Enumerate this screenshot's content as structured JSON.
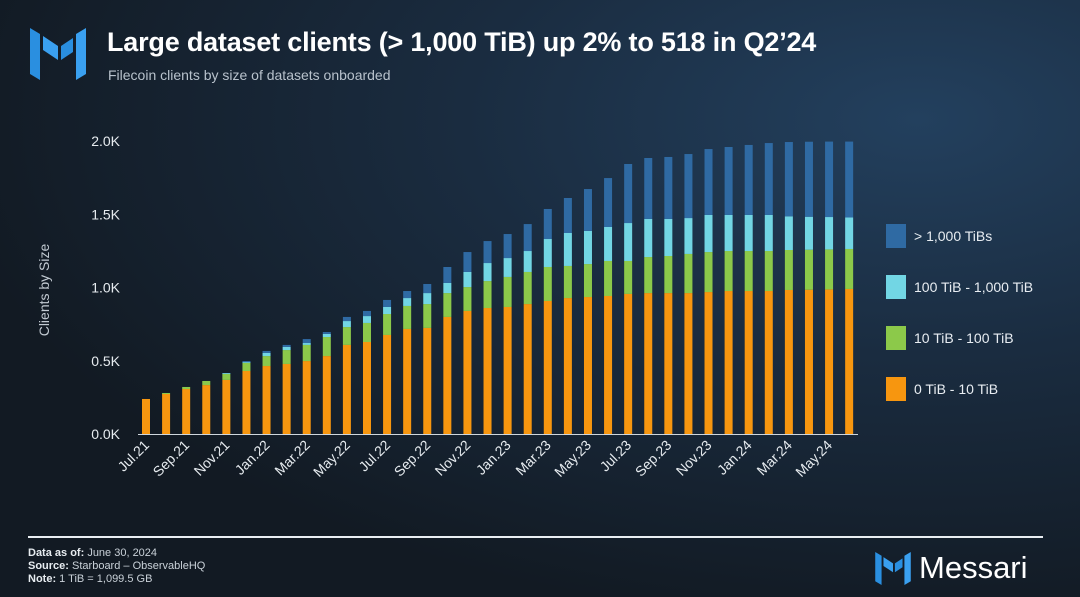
{
  "header": {
    "title": "Large dataset clients (> 1,000 TiB) up 2% to 518 in Q2’24",
    "subtitle": "Filecoin clients by size of datasets onboarded"
  },
  "footer": {
    "data_as_of_label": "Data as of:",
    "data_as_of": "June 30, 2024",
    "source_label": "Source:",
    "source": "Starboard – ObservableHQ",
    "note_label": "Note:",
    "note": "1 TiB = 1,099.5 GB",
    "brand": "Messari"
  },
  "chart_data": {
    "type": "bar",
    "stacked": true,
    "title": "Large dataset clients (> 1,000 TiB) up 2% to 518 in Q2’24",
    "subtitle": "Filecoin clients by size of datasets onboarded",
    "xlabel": "",
    "ylabel": "Clients by Size",
    "ylim": [
      0,
      2000
    ],
    "yticks": [
      0,
      500,
      1000,
      1500,
      2000
    ],
    "ytick_labels": [
      "0.0K",
      "0.5K",
      "1.0K",
      "1.5K",
      "2.0K"
    ],
    "grid": false,
    "legend_position": "right",
    "categories": [
      "Jul.21",
      "Aug.21",
      "Sep.21",
      "Oct.21",
      "Nov.21",
      "Dec.21",
      "Jan.22",
      "Feb.22",
      "Mar.22",
      "Apr.22",
      "May.22",
      "Jun.22",
      "Jul.22",
      "Aug.22",
      "Sep.22",
      "Oct.22",
      "Nov.22",
      "Dec.22",
      "Jan.23",
      "Feb.23",
      "Mar.23",
      "Apr.23",
      "May.23",
      "Jun.23",
      "Jul.23",
      "Aug.23",
      "Sep.23",
      "Oct.23",
      "Nov.23",
      "Dec.23",
      "Jan.24",
      "Feb.24",
      "Mar.24",
      "Apr.24",
      "May.24",
      "Jun.24"
    ],
    "xtick_labels": [
      "Jul.21",
      "Sep.21",
      "Nov.21",
      "Jan.22",
      "Mar.22",
      "May.22",
      "Jul.22",
      "Sep.22",
      "Nov.22",
      "Jan.23",
      "Mar.23",
      "May.23",
      "Jul.23",
      "Sep.23",
      "Nov.23",
      "Jan.24",
      "Mar.24",
      "May.24"
    ],
    "series": [
      {
        "name": "0 TiB - 10 TiB",
        "color": "#f7960f",
        "values": [
          239,
          273,
          307,
          334,
          369,
          430,
          464,
          478,
          498,
          532,
          608,
          628,
          676,
          717,
          724,
          799,
          840,
          860,
          867,
          887,
          908,
          928,
          935,
          942,
          956,
          962,
          962,
          962,
          969,
          976,
          976,
          976,
          983,
          985,
          987,
          990
        ]
      },
      {
        "name": "10 TiB - 100 TiB",
        "color": "#8cc94a",
        "values": [
          0,
          7,
          14,
          28,
          41,
          55,
          68,
          95,
          110,
          130,
          122,
          130,
          143,
          157,
          163,
          163,
          163,
          184,
          205,
          219,
          232,
          219,
          225,
          239,
          225,
          246,
          253,
          267,
          273,
          273,
          273,
          273,
          273,
          273,
          273,
          273
        ]
      },
      {
        "name": "100 TiB - 1,000 TiB",
        "color": "#72d6e4",
        "values": [
          0,
          0,
          0,
          0,
          6,
          6,
          21,
          21,
          13,
          21,
          41,
          47,
          48,
          54,
          75,
          69,
          103,
          123,
          129,
          143,
          191,
          225,
          226,
          232,
          259,
          260,
          253,
          245,
          253,
          246,
          246,
          246,
          230,
          225,
          221,
          215
        ]
      },
      {
        "name": "> 1,000 TiBs",
        "color": "#2f6aa3",
        "values": [
          0,
          0,
          0,
          0,
          0,
          7,
          14,
          14,
          27,
          13,
          28,
          35,
          48,
          48,
          62,
          109,
          136,
          150,
          164,
          184,
          205,
          239,
          286,
          334,
          403,
          416,
          423,
          437,
          450,
          464,
          478,
          491,
          507,
          512,
          515,
          518
        ]
      }
    ],
    "legend_order": [
      "> 1,000 TiBs",
      "100 TiB - 1,000 TiB",
      "10 TiB - 100 TiB",
      "0 TiB - 10 TiB"
    ]
  }
}
